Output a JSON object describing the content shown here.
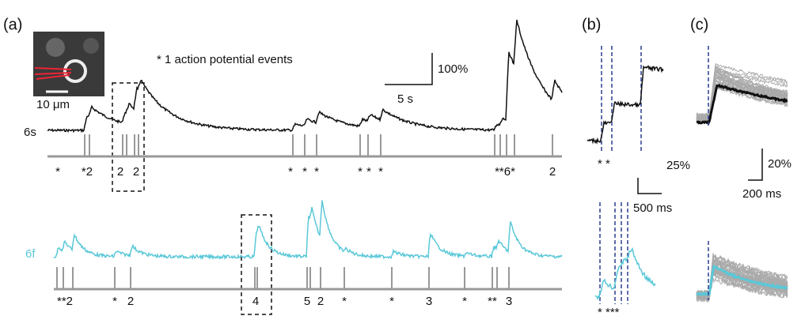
{
  "figure": {
    "panel_labels": [
      "(a)",
      "(b)",
      "(c)"
    ],
    "legend_note": "* 1 action potential events",
    "scalebar_a": {
      "y": "100%",
      "x": "5 s"
    },
    "image_scale": "10 μm",
    "trace_labels": [
      "6s",
      "6f"
    ],
    "events_top": [
      "*",
      "*2",
      "2",
      "2",
      "*",
      "*",
      "*",
      "*",
      "*",
      "*",
      "**6*",
      "2"
    ],
    "events_bottom": [
      "**2",
      "*",
      "2",
      "4",
      "5",
      "2",
      "*",
      "*",
      "3",
      "*",
      "**",
      "3"
    ],
    "panel_b": {
      "events_top": "* *",
      "events_bottom": "* ***",
      "scalebar_y": "25%",
      "scalebar_x": "500 ms"
    },
    "panel_c": {
      "scalebar_y": "20%",
      "scalebar_x": "200 ms"
    }
  }
}
